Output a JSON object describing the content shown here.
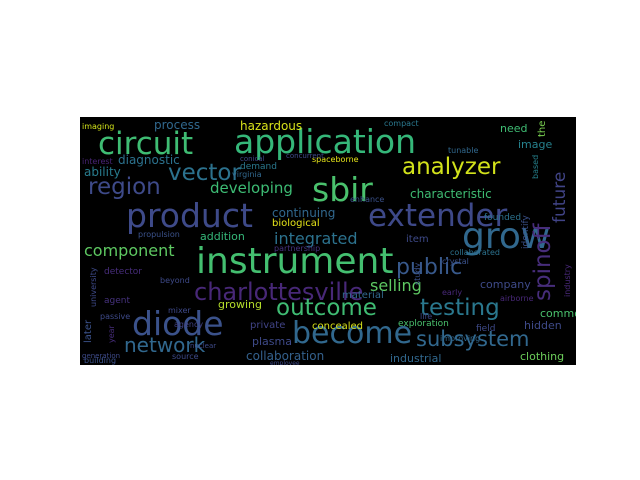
{
  "word_cloud": {
    "background": "#000000",
    "palette": [
      "#440154",
      "#3b528b",
      "#21918c",
      "#5ec962",
      "#fde725"
    ],
    "words": [
      {
        "text": "application",
        "color": "#35b779"
      },
      {
        "text": "circuit",
        "color": "#3fbc73"
      },
      {
        "text": "instrument",
        "color": "#44bf70"
      },
      {
        "text": "product",
        "color": "#3e4a89"
      },
      {
        "text": "extender",
        "color": "#3e4989"
      },
      {
        "text": "diode",
        "color": "#3b528b"
      },
      {
        "text": "become",
        "color": "#31688e"
      },
      {
        "text": "sbir",
        "color": "#4ac16d"
      },
      {
        "text": "grow",
        "color": "#31688e"
      },
      {
        "text": "charlottesville",
        "color": "#482878"
      },
      {
        "text": "outcome",
        "color": "#3fbc73"
      },
      {
        "text": "testing",
        "color": "#2a788e"
      },
      {
        "text": "spinoff",
        "color": "#472d7b"
      },
      {
        "text": "analyzer",
        "color": "#d2e21b"
      },
      {
        "text": "region",
        "color": "#3e4a89"
      },
      {
        "text": "vector",
        "color": "#2c728e"
      },
      {
        "text": "network",
        "color": "#31688e"
      },
      {
        "text": "subsystem",
        "color": "#31688e"
      },
      {
        "text": "public",
        "color": "#38598c"
      },
      {
        "text": "integrated",
        "color": "#2c728e"
      },
      {
        "text": "developing",
        "color": "#3dbc74"
      },
      {
        "text": "component",
        "color": "#5ec962"
      },
      {
        "text": "selling",
        "color": "#5ec962"
      },
      {
        "text": "future",
        "color": "#414487"
      },
      {
        "text": "hazardous",
        "color": "#d8e219"
      },
      {
        "text": "collaboration",
        "color": "#34618d"
      },
      {
        "text": "characteristic",
        "color": "#3fbc73"
      },
      {
        "text": "continuing",
        "color": "#31688e"
      },
      {
        "text": "diagnostic",
        "color": "#2c728e"
      },
      {
        "text": "process",
        "color": "#31688e"
      },
      {
        "text": "ability",
        "color": "#287c8e"
      },
      {
        "text": "industrial",
        "color": "#31688e"
      },
      {
        "text": "plasma",
        "color": "#3e4a89"
      },
      {
        "text": "growing",
        "color": "#b5de2b"
      },
      {
        "text": "addition",
        "color": "#35b779"
      },
      {
        "text": "clothing",
        "color": "#6ccd5a"
      },
      {
        "text": "company",
        "color": "#3e4a89"
      },
      {
        "text": "material",
        "color": "#31688e"
      },
      {
        "text": "hidden",
        "color": "#3e4a89"
      },
      {
        "text": "common",
        "color": "#4ac16d"
      },
      {
        "text": "concealed",
        "color": "#d8e219"
      },
      {
        "text": "exploration",
        "color": "#4ac16d"
      },
      {
        "text": "private",
        "color": "#414487"
      },
      {
        "text": "biological",
        "color": "#e5e419"
      },
      {
        "text": "item",
        "color": "#3e4a89"
      },
      {
        "text": "detector",
        "color": "#472d7b"
      },
      {
        "text": "need",
        "color": "#3fbc73"
      },
      {
        "text": "image",
        "color": "#26828e"
      },
      {
        "text": "demand",
        "color": "#2a788e"
      },
      {
        "text": "identify",
        "color": "#3b528b"
      },
      {
        "text": "later",
        "color": "#3b528b"
      },
      {
        "text": "agent",
        "color": "#46327e"
      },
      {
        "text": "year",
        "color": "#472d7b"
      },
      {
        "text": "virginia",
        "color": "#31688e"
      },
      {
        "text": "spaceborne",
        "color": "#e5e419"
      },
      {
        "text": "interest",
        "color": "#482475"
      },
      {
        "text": "compact",
        "color": "#2a788e"
      },
      {
        "text": "tunable",
        "color": "#31688e"
      },
      {
        "text": "based",
        "color": "#26828e"
      },
      {
        "text": "partnership",
        "color": "#46327e"
      },
      {
        "text": "crystal",
        "color": "#3b528b"
      },
      {
        "text": "founded",
        "color": "#2c728e"
      },
      {
        "text": "collaborated",
        "color": "#2c728e"
      },
      {
        "text": "field",
        "color": "#3e4a89"
      },
      {
        "text": "passive",
        "color": "#3e4a89"
      },
      {
        "text": "improving",
        "color": "#31688e"
      },
      {
        "text": "airborne",
        "color": "#482878"
      },
      {
        "text": "early",
        "color": "#482878"
      },
      {
        "text": "mixer",
        "color": "#3e4989"
      },
      {
        "text": "enhance",
        "color": "#3b528b"
      },
      {
        "text": "beyond",
        "color": "#3e4a89"
      },
      {
        "text": "building",
        "color": "#3b528b"
      },
      {
        "text": "propulsion",
        "color": "#3b528b"
      },
      {
        "text": "imaging",
        "color": "#d2e21b"
      },
      {
        "text": "conical",
        "color": "#3e4a89"
      },
      {
        "text": "source",
        "color": "#3e4a89"
      },
      {
        "text": "agency",
        "color": "#414487"
      },
      {
        "text": "study",
        "color": "#3b528b"
      },
      {
        "text": "employee",
        "color": "#3e4a89"
      },
      {
        "text": "concurrent",
        "color": "#3e4a89"
      },
      {
        "text": "generation",
        "color": "#3e4a89"
      },
      {
        "text": "life",
        "color": "#3e4a89"
      },
      {
        "text": "industry",
        "color": "#482878"
      },
      {
        "text": "university",
        "color": "#3e4a89"
      },
      {
        "text": "nuclear",
        "color": "#3e4a89"
      },
      {
        "text": "the",
        "color": "#7ad151"
      }
    ]
  }
}
